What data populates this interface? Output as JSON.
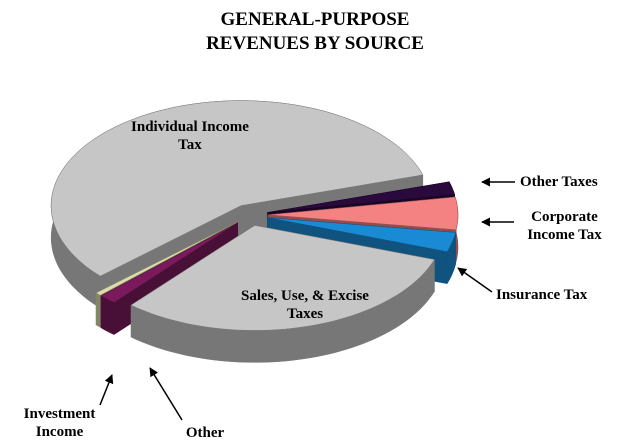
{
  "chart_data": {
    "type": "pie3d",
    "title": "GENERAL-PURPOSE REVENUES BY SOURCE",
    "categories": [
      "Other Taxes",
      "Corporate Income Tax",
      "Insurance Tax",
      "Sales, Use, & Excise Taxes",
      "Other",
      "Investment Income",
      "Individual Income Tax"
    ],
    "values": [
      2,
      5,
      3,
      31,
      1.5,
      0.5,
      57
    ],
    "colors": [
      "#2a0a3c",
      "#f48282",
      "#1a8ad4",
      "#c6c6c6",
      "#7a1a5c",
      "#dcdcaa",
      "#c6c6c6"
    ]
  }
}
